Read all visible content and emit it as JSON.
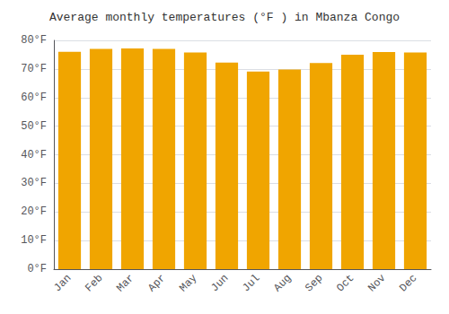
{
  "chart_data": {
    "type": "bar",
    "title": "Average monthly temperatures (°F ) in Mbanza Congo",
    "categories": [
      "Jan",
      "Feb",
      "Mar",
      "Apr",
      "May",
      "Jun",
      "Jul",
      "Aug",
      "Sep",
      "Oct",
      "Nov",
      "Dec"
    ],
    "values": [
      76.0,
      77.0,
      77.2,
      77.0,
      75.8,
      72.2,
      69.1,
      69.8,
      72.1,
      75.0,
      75.9,
      75.8
    ],
    "color": "#F0A500",
    "ylim": [
      0,
      80
    ],
    "yticks": [
      {
        "value": 0,
        "label": "0°F"
      },
      {
        "value": 10,
        "label": "10°F"
      },
      {
        "value": 20,
        "label": "20°F"
      },
      {
        "value": 30,
        "label": "30°F"
      },
      {
        "value": 40,
        "label": "40°F"
      },
      {
        "value": 50,
        "label": "50°F"
      },
      {
        "value": 60,
        "label": "60°F"
      },
      {
        "value": 70,
        "label": "70°F"
      },
      {
        "value": 80,
        "label": "80°F"
      }
    ],
    "grid": true
  }
}
